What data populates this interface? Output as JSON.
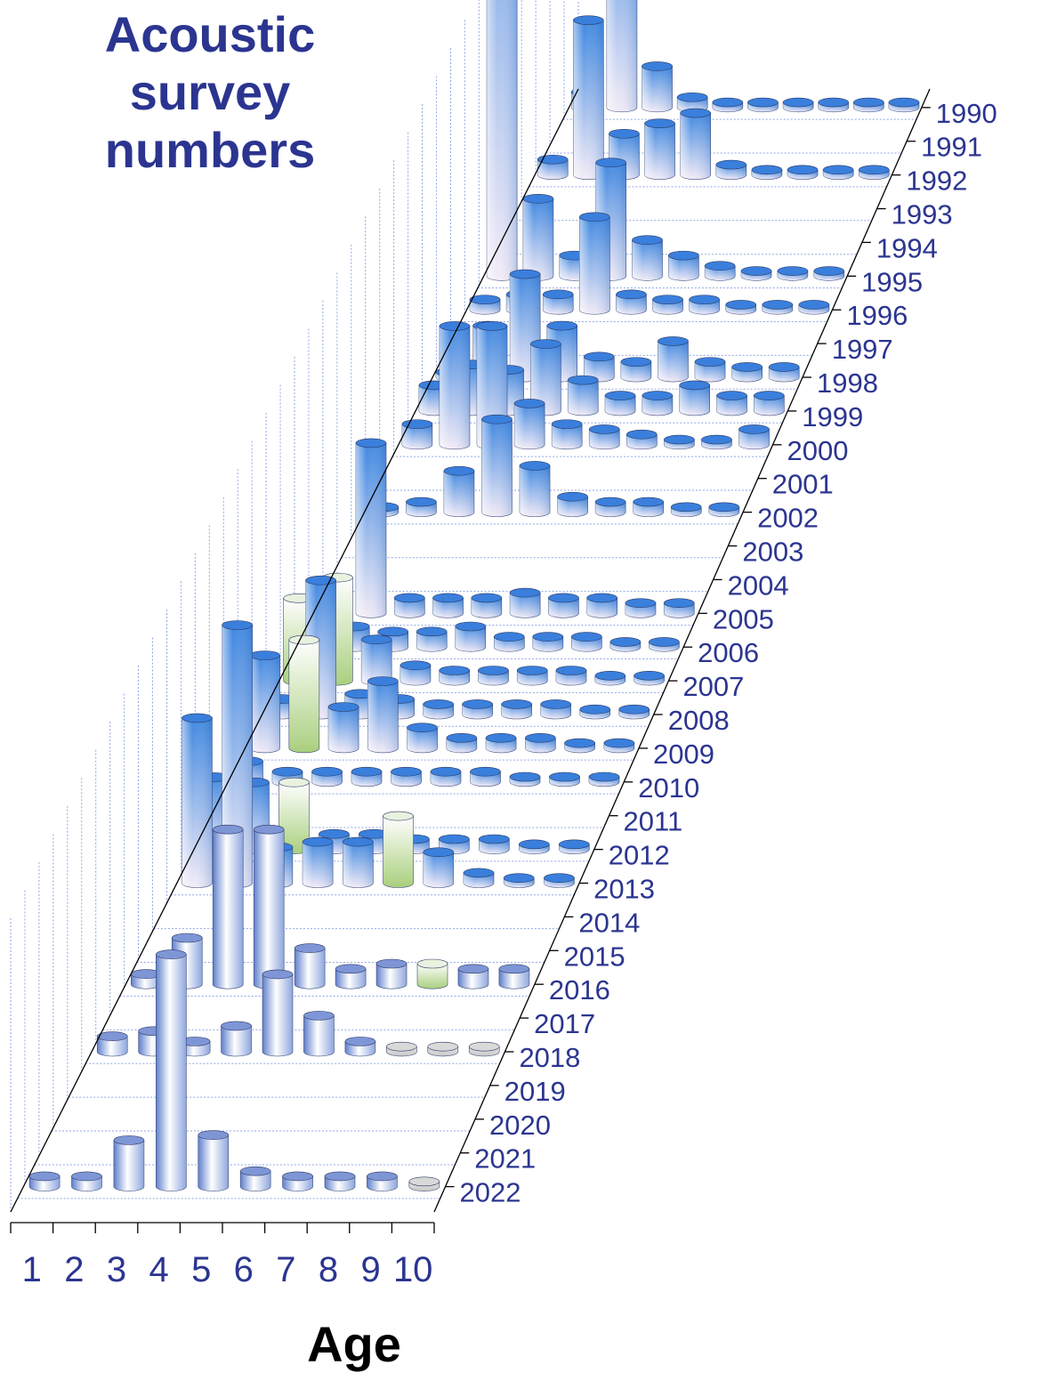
{
  "chart_data": {
    "type": "bar",
    "subtype": "3d-cylinder",
    "title": [
      "Acoustic",
      "survey",
      "numbers"
    ],
    "xlabel": "Age",
    "ages": [
      "1",
      "2",
      "3",
      "4",
      "5",
      "6",
      "7",
      "8",
      "9",
      "10"
    ],
    "years": [
      "1990",
      "1991",
      "1992",
      "1993",
      "1994",
      "1995",
      "1996",
      "1997",
      "1998",
      "1999",
      "2000",
      "2001",
      "2002",
      "2003",
      "2004",
      "2005",
      "2006",
      "2007",
      "2008",
      "2009",
      "2010",
      "2011",
      "2012",
      "2013",
      "2014",
      "2015",
      "2016",
      "2017",
      "2018",
      "2019",
      "2020",
      "2021",
      "2022"
    ],
    "grid": true,
    "colors": {
      "text": "#2b3590",
      "survey": "#3a7fdc",
      "highlight": "#9ac468",
      "recent": "#6f8ed4",
      "low": "#d4d4d4"
    },
    "series": [
      {
        "year": "1990",
        "values": [
          0.3,
          4.5,
          0.8,
          0.2,
          0.1,
          0.1,
          0.1,
          0.1,
          0.1,
          0.1
        ]
      },
      {
        "year": "1991",
        "values": [
          0,
          0,
          0,
          0,
          0,
          0,
          0,
          0,
          0,
          0
        ]
      },
      {
        "year": "1992",
        "values": [
          0.3,
          3.0,
          0.8,
          1.0,
          1.2,
          0.2,
          0.1,
          0.1,
          0.1,
          0.1
        ]
      },
      {
        "year": "1993",
        "values": [
          0,
          0,
          0,
          0,
          0,
          0,
          0,
          0,
          0,
          0
        ]
      },
      {
        "year": "1994",
        "values": [
          0,
          0,
          0,
          0,
          0,
          0,
          0,
          0,
          0,
          0
        ]
      },
      {
        "year": "1995",
        "values": [
          11.0,
          1.5,
          0.4,
          2.2,
          0.7,
          0.4,
          0.2,
          0.1,
          0.1,
          0.1
        ]
      },
      {
        "year": "1996",
        "values": [
          0.2,
          0.3,
          0.3,
          1.8,
          0.3,
          0.2,
          0.2,
          0.1,
          0.1,
          0.1
        ]
      },
      {
        "year": "1997",
        "values": [
          0,
          0,
          0,
          0,
          0,
          0,
          0,
          0,
          0,
          0
        ]
      },
      {
        "year": "1998",
        "values": [
          0.1,
          1.0,
          2.0,
          1.0,
          0.4,
          0.3,
          0.7,
          0.3,
          0.2,
          0.2
        ]
      },
      {
        "year": "1999",
        "values": [
          0.5,
          0.9,
          0.8,
          1.3,
          0.6,
          0.3,
          0.3,
          0.5,
          0.3,
          0.3
        ]
      },
      {
        "year": "2000",
        "values": [
          0.4,
          2.3,
          2.3,
          0.8,
          0.4,
          0.3,
          0.2,
          0.1,
          0.1,
          0.3
        ]
      },
      {
        "year": "2001",
        "values": [
          0,
          0,
          0,
          0,
          0,
          0,
          0,
          0,
          0,
          0
        ]
      },
      {
        "year": "2002",
        "values": [
          0.1,
          0.2,
          0.8,
          1.8,
          0.9,
          0.3,
          0.2,
          0.2,
          0.1,
          0.1
        ]
      },
      {
        "year": "2003",
        "values": [
          0,
          0,
          0,
          0,
          0,
          0,
          0,
          0,
          0,
          0
        ]
      },
      {
        "year": "2004",
        "values": [
          0,
          0,
          0,
          0,
          0,
          0,
          0,
          0,
          0,
          0
        ]
      },
      {
        "year": "2005",
        "values": [
          0.4,
          3.3,
          0.3,
          0.3,
          0.3,
          0.4,
          0.3,
          0.3,
          0.2,
          0.2
        ]
      },
      {
        "year": "2006",
        "values": [
          0.3,
          0.4,
          0.3,
          0.3,
          0.4,
          0.2,
          0.2,
          0.2,
          0.1,
          0.1
        ]
      },
      {
        "year": "2007",
        "values": [
          1.6,
          2.0,
          0.8,
          0.3,
          0.2,
          0.2,
          0.2,
          0.2,
          0.1,
          0.1
        ]
      },
      {
        "year": "2008",
        "values": [
          0.3,
          2.6,
          0.4,
          0.3,
          0.2,
          0.2,
          0.2,
          0.2,
          0.1,
          0.1
        ]
      },
      {
        "year": "2009",
        "values": [
          1.8,
          2.1,
          0.8,
          1.3,
          0.4,
          0.2,
          0.2,
          0.2,
          0.1,
          0.1
        ]
      },
      {
        "year": "2010",
        "values": [
          0.4,
          0.2,
          0.2,
          0.2,
          0.2,
          0.2,
          0.2,
          0.1,
          0.1,
          0.1
        ]
      },
      {
        "year": "2011",
        "values": [
          0,
          0,
          0,
          0,
          0,
          0,
          0,
          0,
          0,
          0
        ]
      },
      {
        "year": "2012",
        "values": [
          1.4,
          1.3,
          1.3,
          0.3,
          0.3,
          0.2,
          0.2,
          0.2,
          0.1,
          0.1
        ]
      },
      {
        "year": "2013",
        "values": [
          3.2,
          5.0,
          0.7,
          0.8,
          0.8,
          1.3,
          0.6,
          0.2,
          0.1,
          0.1
        ]
      },
      {
        "year": "2014",
        "values": [
          0,
          0,
          0,
          0,
          0,
          0,
          0,
          0,
          0,
          0
        ]
      },
      {
        "year": "2015",
        "values": [
          0,
          0,
          0,
          0,
          0,
          0,
          0,
          0,
          0,
          0
        ]
      },
      {
        "year": "2016",
        "values": [
          0.2,
          0.9,
          3.0,
          3.0,
          0.7,
          0.3,
          0.4,
          0.4,
          0.3,
          0.3
        ]
      },
      {
        "year": "2017",
        "values": [
          0,
          0,
          0,
          0,
          0,
          0,
          0,
          0,
          0,
          0
        ]
      },
      {
        "year": "2018",
        "values": [
          0.3,
          0.4,
          0.2,
          0.5,
          1.5,
          0.7,
          0.2,
          0.1,
          0.1,
          0.1
        ]
      },
      {
        "year": "2019",
        "values": [
          0,
          0,
          0,
          0,
          0,
          0,
          0,
          0,
          0,
          0
        ]
      },
      {
        "year": "2020",
        "values": [
          0,
          0,
          0,
          0,
          0,
          0,
          0,
          0,
          0,
          0
        ]
      },
      {
        "year": "2021",
        "values": [
          0,
          0,
          0,
          0,
          0,
          0,
          0,
          0,
          0,
          0
        ]
      },
      {
        "year": "2022",
        "values": [
          0.2,
          0.2,
          0.9,
          4.5,
          1.0,
          0.3,
          0.2,
          0.2,
          0.2,
          0.1
        ]
      }
    ],
    "highlights": [
      {
        "year": "2007",
        "age": "1"
      },
      {
        "year": "2007",
        "age": "2"
      },
      {
        "year": "2009",
        "age": "2"
      },
      {
        "year": "2012",
        "age": "3"
      },
      {
        "year": "2013",
        "age": "6"
      },
      {
        "year": "2016",
        "age": "8"
      }
    ]
  }
}
